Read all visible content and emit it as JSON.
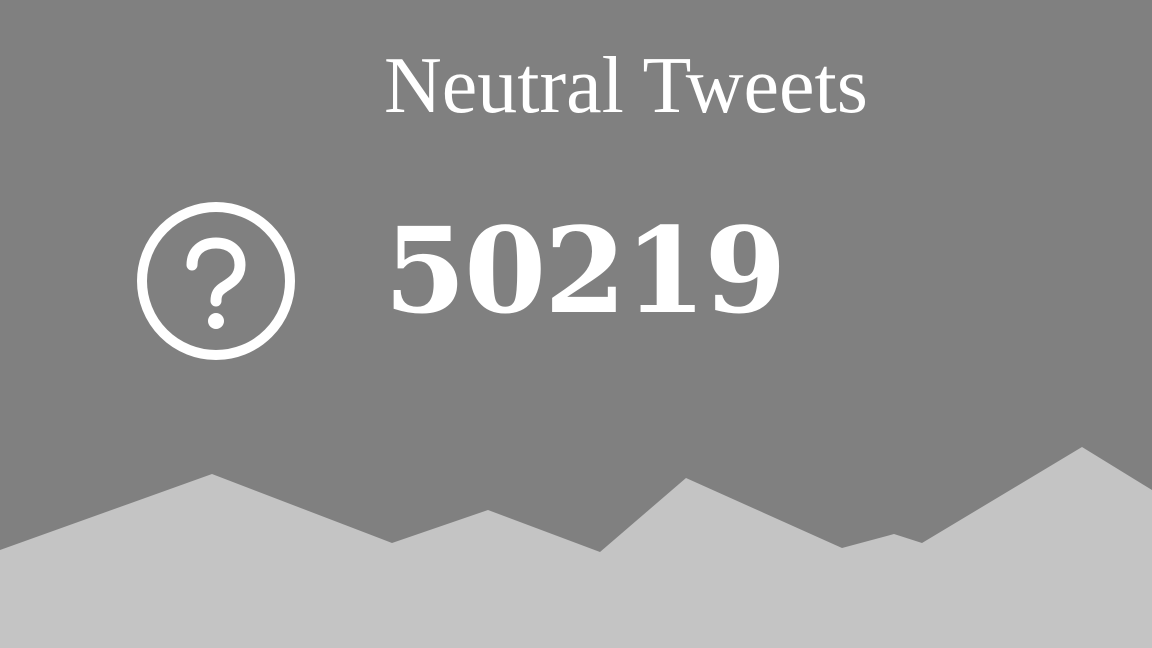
{
  "card": {
    "title": "Neutral Tweets",
    "value": "50219",
    "icon": "question-circle-icon"
  },
  "colors": {
    "background": "#808080",
    "text": "#ffffff",
    "mountains": "#c4c4c4"
  }
}
